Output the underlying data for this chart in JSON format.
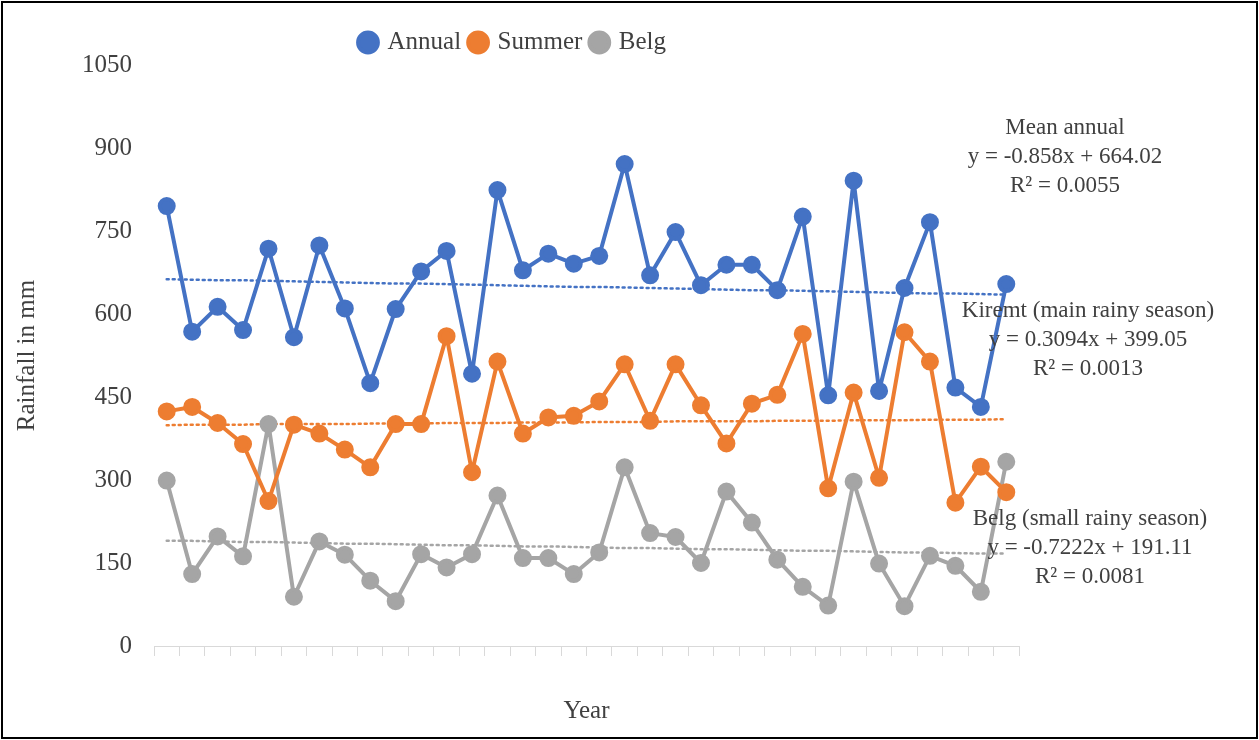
{
  "chart_data": {
    "type": "line",
    "categories": [
      null,
      null,
      null,
      null,
      null,
      null,
      null,
      null,
      null,
      null,
      null,
      null,
      null,
      null,
      null,
      null,
      null,
      null,
      null,
      null,
      null,
      null,
      null,
      null,
      null,
      null,
      null,
      null,
      null,
      null,
      null,
      null,
      null,
      null
    ],
    "series": [
      {
        "name": "Annual",
        "color": "#4472c4",
        "values": [
          795,
          568,
          613,
          571,
          718,
          558,
          724,
          610,
          475,
          609,
          677,
          714,
          492,
          824,
          679,
          709,
          691,
          705,
          871,
          670,
          748,
          652,
          689,
          689,
          643,
          776,
          453,
          841,
          461,
          647,
          766,
          467,
          432,
          654
        ]
      },
      {
        "name": "Summer",
        "color": "#ed7d31",
        "values": [
          424,
          432,
          403,
          365,
          262,
          400,
          384,
          355,
          323,
          401,
          401,
          560,
          314,
          514,
          384,
          413,
          416,
          442,
          509,
          407,
          509,
          435,
          366,
          438,
          454,
          564,
          285,
          458,
          304,
          567,
          514,
          259,
          324,
          278
        ]
      },
      {
        "name": "Belg",
        "color": "#a5a5a5",
        "values": [
          299,
          130,
          198,
          162,
          401,
          89,
          189,
          165,
          118,
          81,
          166,
          142,
          166,
          272,
          159,
          159,
          130,
          169,
          323,
          204,
          197,
          150,
          279,
          223,
          156,
          107,
          73,
          297,
          149,
          72,
          163,
          145,
          98,
          333
        ]
      },
      {
        "type": "line",
        "color": "#4472c4",
        "line_style": "dotted",
        "marker": "none",
        "values": [
          663,
          662,
          661,
          661,
          660,
          659,
          658,
          657,
          656,
          655,
          655,
          654,
          653,
          652,
          651,
          650,
          649,
          649,
          648,
          647,
          646,
          645,
          644,
          643,
          643,
          642,
          641,
          640,
          639,
          638,
          637,
          637,
          636,
          635
        ]
      },
      {
        "type": "line",
        "color": "#ed7d31",
        "line_style": "dotted",
        "marker": "none",
        "values": [
          399,
          400,
          400,
          400,
          401,
          401,
          401,
          401,
          402,
          402,
          402,
          403,
          403,
          403,
          404,
          404,
          404,
          405,
          405,
          405,
          406,
          406,
          406,
          406,
          407,
          407,
          407,
          408,
          408,
          408,
          409,
          409,
          409,
          410
        ]
      },
      {
        "type": "line",
        "color": "#a5a5a5",
        "line_style": "dotted",
        "marker": "none",
        "values": [
          190,
          190,
          189,
          188,
          188,
          187,
          186,
          185,
          185,
          184,
          183,
          182,
          182,
          181,
          180,
          180,
          179,
          178,
          177,
          177,
          176,
          175,
          175,
          174,
          173,
          172,
          172,
          171,
          170,
          169,
          169,
          168,
          167,
          167
        ]
      }
    ],
    "xlabel": "Year",
    "ylabel": "Rainfall in mm",
    "ylim": [
      0,
      1050
    ],
    "yticks": [
      0,
      150,
      300,
      450,
      600,
      750,
      900,
      1050
    ],
    "grid": false,
    "legend": "top",
    "marker": "circle",
    "line_style": "solid",
    "annotations": [
      "Mean annual\ny = -0.858x + 664.02\nR² = 0.0055",
      "Kiremt (main rainy season)\ny = 0.3094x + 399.05\nR² = 0.0013",
      "Belg (small rainy season)\ny = -0.7222x + 191.11\nR² = 0.0081"
    ]
  }
}
